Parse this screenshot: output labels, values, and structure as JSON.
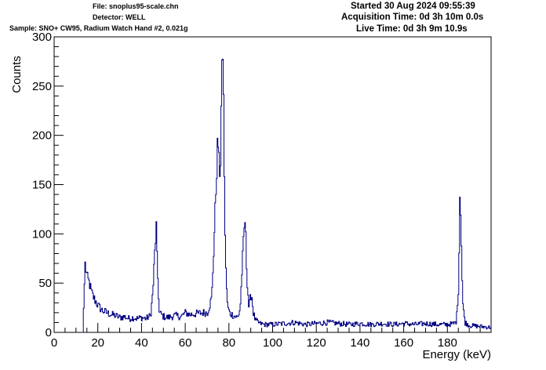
{
  "header": {
    "file": "File: snoplus95-scale.chn",
    "detector": "Detector: WELL",
    "sample": "Sample: SNO+ CW95, Radium Watch Hand #2, 0.021g",
    "started": "Started 30 Aug 2024 09:55:39",
    "acquisition": "Acquisition Time: 0d 3h 10m 0.0s",
    "live": "Live Time: 0d 3h 9m 10.9s"
  },
  "chart_data": {
    "type": "line",
    "xlabel": "Energy (keV)",
    "ylabel": "Counts",
    "xlim": [
      0,
      200
    ],
    "ylim": [
      0,
      300
    ],
    "x_ticks": [
      0,
      20,
      40,
      60,
      80,
      100,
      120,
      140,
      160,
      180
    ],
    "y_ticks": [
      0,
      50,
      100,
      150,
      200,
      250,
      300
    ],
    "line_color": "#000080",
    "peaks": [
      {
        "energy": 14.2,
        "counts": 70
      },
      {
        "energy": 46.6,
        "counts": 107
      },
      {
        "energy": 74.8,
        "counts": 200
      },
      {
        "energy": 77.1,
        "counts": 288
      },
      {
        "energy": 87.3,
        "counts": 115
      },
      {
        "energy": 90.2,
        "counts": 40
      },
      {
        "energy": 186.0,
        "counts": 148
      }
    ],
    "series": [
      {
        "x": [
          13,
          14,
          15,
          16,
          17,
          18,
          20,
          22,
          24,
          26,
          28,
          30,
          32,
          34,
          36,
          38,
          40,
          42,
          44,
          45,
          46,
          46.6,
          47,
          48,
          50,
          52,
          55,
          58,
          60,
          62,
          65,
          68,
          70,
          72,
          73,
          74,
          74.8,
          75.5,
          76,
          76.5,
          77.1,
          77.6,
          78,
          79,
          80,
          82,
          84,
          85,
          86,
          87,
          87.3,
          88,
          89,
          90,
          90.2,
          91,
          92,
          94,
          96,
          100,
          105,
          110,
          115,
          120,
          125,
          130,
          135,
          140,
          145,
          150,
          155,
          160,
          165,
          170,
          175,
          180,
          183,
          184,
          185,
          185.6,
          186,
          186.5,
          187,
          188,
          190,
          195,
          200
        ],
        "y": [
          0,
          70,
          55,
          50,
          40,
          35,
          27,
          22,
          20,
          18,
          17,
          15,
          16,
          14,
          15,
          14,
          15,
          14,
          17,
          40,
          85,
          107,
          70,
          20,
          16,
          15,
          17,
          16,
          20,
          18,
          19,
          20,
          20,
          35,
          90,
          150,
          200,
          160,
          175,
          250,
          288,
          200,
          100,
          30,
          20,
          17,
          15,
          25,
          70,
          110,
          115,
          60,
          25,
          38,
          40,
          20,
          12,
          9,
          8,
          8,
          9,
          10,
          8,
          9,
          10,
          9,
          8,
          9,
          8,
          9,
          8,
          9,
          8,
          9,
          8,
          8,
          9,
          12,
          50,
          148,
          120,
          60,
          25,
          10,
          7,
          6,
          5
        ]
      }
    ]
  }
}
